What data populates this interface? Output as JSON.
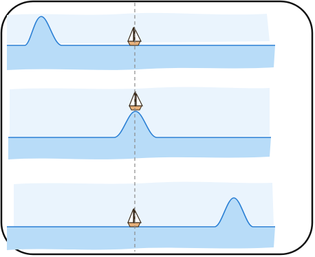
{
  "diagram": {
    "panels": [
      {
        "name": "panel-wave-left",
        "crest_position": "left",
        "boat_lifted": false
      },
      {
        "name": "panel-wave-center",
        "crest_position": "center",
        "boat_lifted": true
      },
      {
        "name": "panel-wave-right",
        "crest_position": "right",
        "boat_lifted": false
      }
    ],
    "colors": {
      "frame_stroke": "#111111",
      "water_fill": "#b8dcf8",
      "sky_fill": "#eaf4fd",
      "wave_line": "#2a7fd4",
      "guide_line": "#8a8a8a",
      "boat_hull": "#e8b07a",
      "boat_sail": "#ffffff",
      "boat_outline": "#3a2a1a"
    },
    "icons": [
      "sailboat-icon"
    ]
  }
}
